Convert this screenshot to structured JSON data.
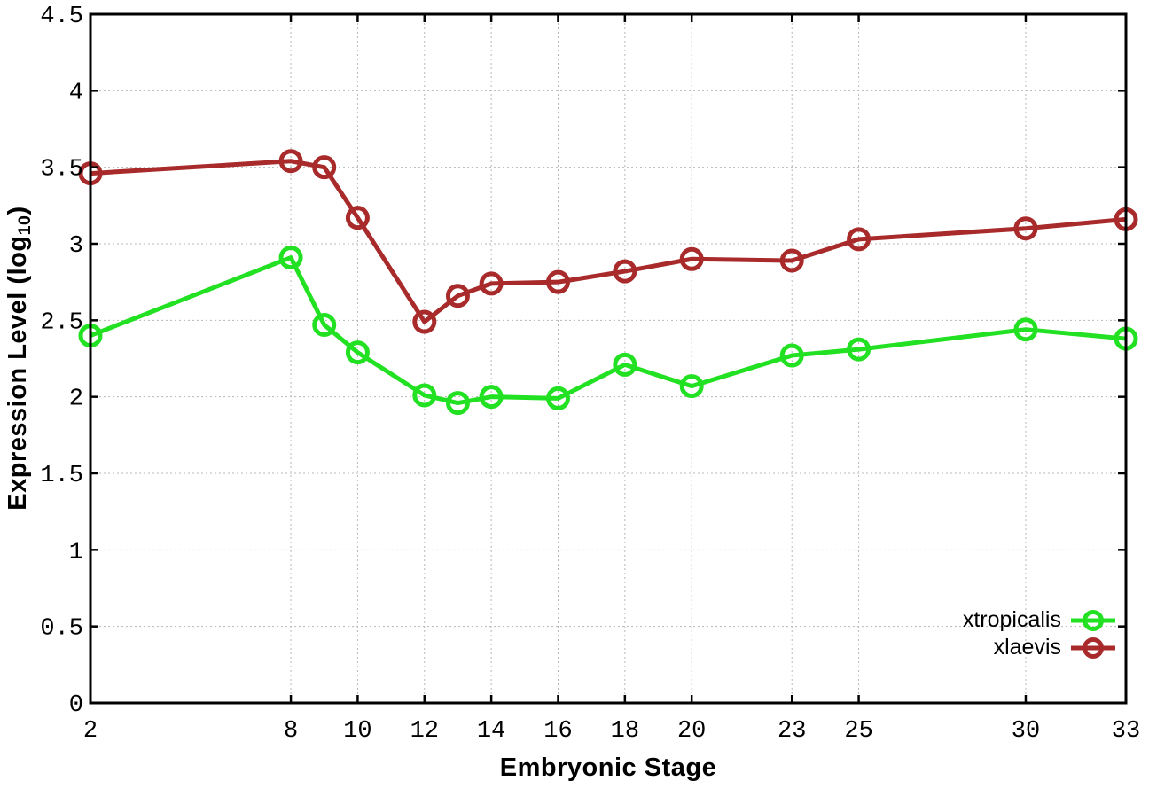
{
  "chart_data": {
    "type": "line",
    "title": "",
    "xlabel": "Embryonic Stage",
    "ylabel": "Expression Level (log10)",
    "ylabel_parts": {
      "main": "Expression Level (log",
      "sub": "10",
      "close": ")"
    },
    "xlim": [
      2,
      33
    ],
    "ylim": [
      0,
      4.5
    ],
    "grid": true,
    "grid_style": "dotted",
    "legend_position": "bottom-right-inside",
    "axis_color": "#000000",
    "grid_color": "#b8b8b8",
    "x_ticks": {
      "values": [
        2,
        8,
        10,
        12,
        14,
        16,
        18,
        20,
        23,
        25,
        30,
        33
      ],
      "labels": [
        "2",
        "8",
        "10",
        "12",
        "14",
        "16",
        "18",
        "20",
        "23",
        "25",
        "30",
        "33"
      ]
    },
    "y_ticks": {
      "values": [
        0,
        0.5,
        1,
        1.5,
        2,
        2.5,
        3,
        3.5,
        4,
        4.5
      ],
      "labels": [
        "0",
        "0.5",
        "1",
        "1.5",
        "2",
        "2.5",
        "3",
        "3.5",
        "4",
        "4.5"
      ]
    },
    "x": [
      2,
      8,
      9,
      10,
      12,
      13,
      14,
      16,
      18,
      20,
      23,
      25,
      30,
      33
    ],
    "series": [
      {
        "name": "xtropicalis",
        "color": "#22e022",
        "marker": "open-circle",
        "values": [
          2.4,
          2.91,
          2.47,
          2.29,
          2.01,
          1.96,
          2.0,
          1.99,
          2.21,
          2.07,
          2.27,
          2.31,
          2.44,
          2.38
        ]
      },
      {
        "name": "xlaevis",
        "color": "#a82a2a",
        "marker": "open-circle",
        "values": [
          3.46,
          3.54,
          3.5,
          3.17,
          2.49,
          2.66,
          2.74,
          2.75,
          2.82,
          2.9,
          2.89,
          3.03,
          3.1,
          3.16
        ]
      }
    ]
  }
}
